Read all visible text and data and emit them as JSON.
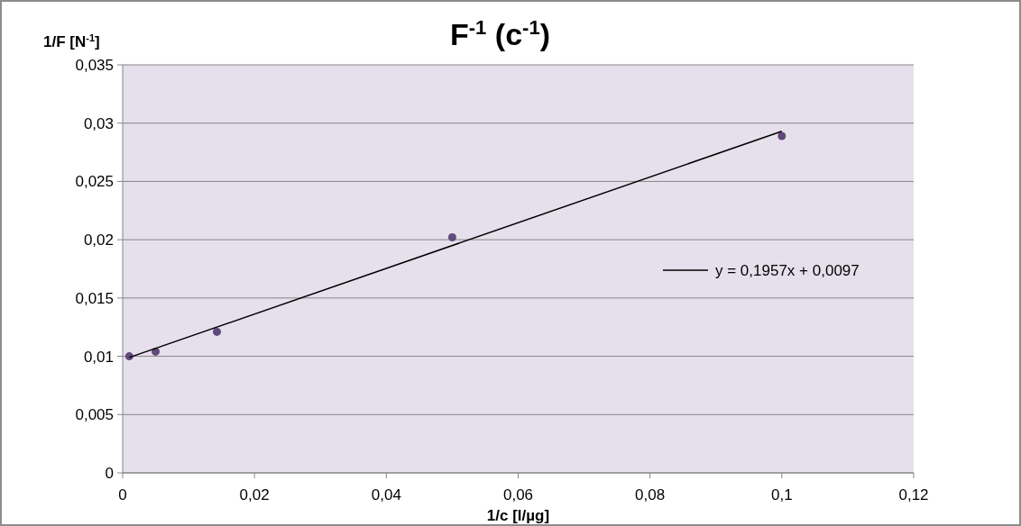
{
  "chart_data": {
    "type": "scatter",
    "title": "F$^{-1}$ (c$^{-1}$)",
    "ylabel": "1/F [N$^{-1}$]",
    "xlabel": "1/c [l/µg]",
    "xlim": [
      0,
      0.12
    ],
    "xticks": [
      0,
      {
        "value": 0.02,
        "label": "0,02"
      },
      {
        "value": 0.04,
        "label": "0,04"
      },
      {
        "value": 0.06,
        "label": "0,06"
      },
      {
        "value": 0.08,
        "label": "0,08"
      },
      {
        "value": 0.1,
        "label": "0,1"
      },
      {
        "value": 0.12,
        "label": "0,12"
      }
    ],
    "ylim": [
      0,
      0.035
    ],
    "yticks": [
      0,
      {
        "value": 0.005,
        "label": "0,005"
      },
      {
        "value": 0.01,
        "label": "0,01"
      },
      {
        "value": 0.015,
        "label": "0,015"
      },
      {
        "value": 0.02,
        "label": "0,02"
      },
      {
        "value": 0.025,
        "label": "0,025"
      },
      {
        "value": 0.03,
        "label": "0,03"
      },
      {
        "value": 0.035,
        "label": "0,035"
      }
    ],
    "grid": "y",
    "legend": "right",
    "series": [
      {
        "marker": "circle",
        "color": "#604a7b",
        "x": [
          0.001,
          0.005,
          0.0143,
          0.05,
          0.1
        ],
        "values": [
          0.01,
          0.0104,
          0.0121,
          0.0202,
          0.0289
        ]
      },
      {
        "type": "line",
        "marker": "none",
        "name": "y = 0,1957x + 0,0097",
        "color": "#000000",
        "x": [
          0.001,
          0.1
        ],
        "values": [
          0.0099,
          0.0293
        ]
      }
    ]
  }
}
